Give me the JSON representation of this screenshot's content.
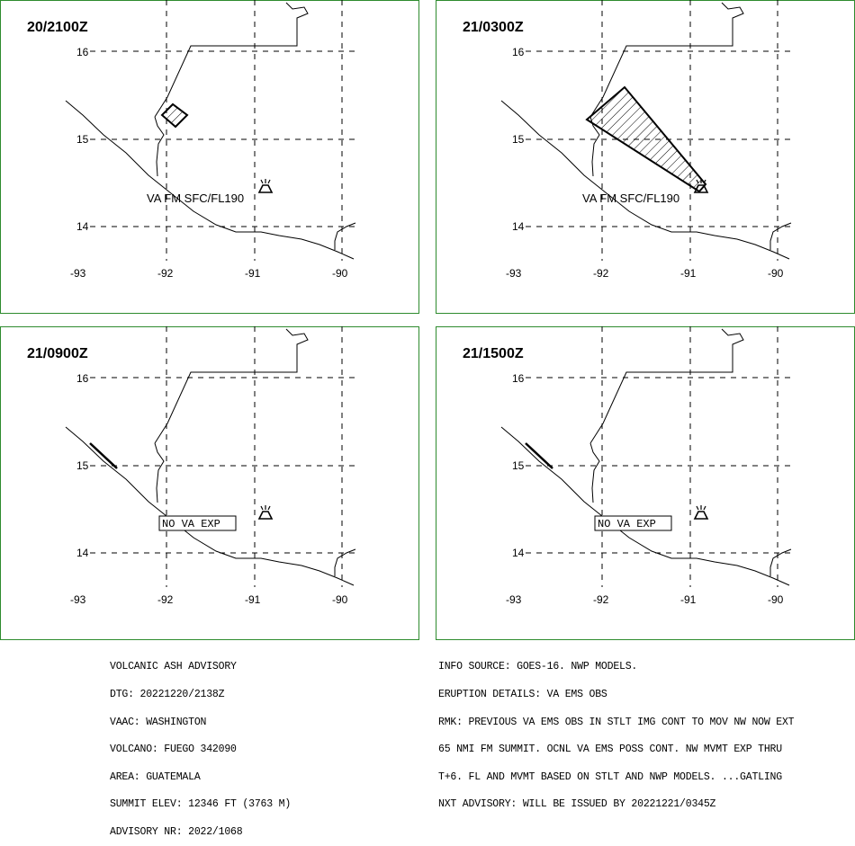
{
  "panels": [
    {
      "time": "20/2100Z",
      "label": "VA FM SFC/FL190",
      "label_type": "text",
      "ash": "small-box"
    },
    {
      "time": "21/0300Z",
      "label": "VA FM SFC/FL190",
      "label_type": "text",
      "ash": "plume"
    },
    {
      "time": "21/0900Z",
      "label": "NO VA EXP",
      "label_type": "boxed",
      "ash": "none"
    },
    {
      "time": "21/1500Z",
      "label": "NO VA EXP",
      "label_type": "boxed",
      "ash": "none"
    }
  ],
  "axes": {
    "lon_ticks": [
      "-93",
      "-92",
      "-91",
      "-90"
    ],
    "lat_ticks": [
      "16",
      "15",
      "14"
    ]
  },
  "advisory_left": [
    "VOLCANIC ASH ADVISORY",
    "DTG: 20221220/2138Z",
    "VAAC: WASHINGTON",
    "VOLCANO: FUEGO 342090",
    "AREA: GUATEMALA",
    "SUMMIT ELEV: 12346 FT (3763 M)",
    "ADVISORY NR: 2022/1068"
  ],
  "advisory_right": [
    "INFO SOURCE: GOES-16. NWP MODELS.",
    "ERUPTION DETAILS: VA EMS OBS",
    "RMK: PREVIOUS VA EMS OBS IN STLT IMG CONT TO MOV NW NOW EXT",
    "65 NMI FM SUMMIT. OCNL VA EMS POSS CONT. NW MVMT EXP THRU",
    "T+6. FL AND MVMT BASED ON STLT AND NWP MODELS. ...GATLING",
    "NXT ADVISORY: WILL BE ISSUED BY 20221221/0345Z"
  ],
  "colors": {
    "frame": "#2e8b2e",
    "lines": "#000000",
    "background": "#ffffff"
  },
  "icons": {
    "volcano": "volcano-icon"
  }
}
